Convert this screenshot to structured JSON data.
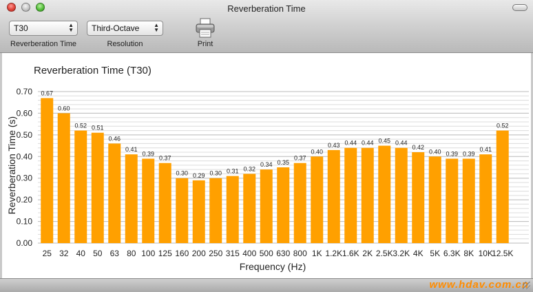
{
  "window": {
    "title": "Reverberation Time"
  },
  "toolbar": {
    "metric_select": {
      "value": "T30",
      "label": "Reverberation Time"
    },
    "resolution_select": {
      "value": "Third-Octave",
      "label": "Resolution"
    },
    "print_label": "Print"
  },
  "watermark": "www.hdav.com.cn",
  "chart_data": {
    "type": "bar",
    "title": "Reverberation Time (T30)",
    "xlabel": "Frequency (Hz)",
    "ylabel": "Reverberation Time (s)",
    "ylim": [
      0,
      0.7
    ],
    "yticks": [
      "0.00",
      "0.10",
      "0.20",
      "0.30",
      "0.40",
      "0.50",
      "0.60",
      "0.70"
    ],
    "grid": true,
    "bar_color": "#ffa000",
    "categories": [
      "25",
      "32",
      "40",
      "50",
      "63",
      "80",
      "100",
      "125",
      "160",
      "200",
      "250",
      "315",
      "400",
      "500",
      "630",
      "800",
      "1K",
      "1.2K",
      "1.6K",
      "2K",
      "2.5K",
      "3.2K",
      "4K",
      "5K",
      "6.3K",
      "8K",
      "10K",
      "12.5K"
    ],
    "values": [
      0.67,
      0.6,
      0.52,
      0.51,
      0.46,
      0.41,
      0.39,
      0.37,
      0.3,
      0.29,
      0.3,
      0.31,
      0.32,
      0.34,
      0.35,
      0.37,
      0.4,
      0.43,
      0.44,
      0.44,
      0.45,
      0.44,
      0.42,
      0.4,
      0.39,
      0.39,
      0.41,
      0.52
    ],
    "value_labels": [
      "0.67",
      "0.60",
      "0.52",
      "0.51",
      "0.46",
      "0.41",
      "0.39",
      "0.37",
      "0.30",
      "0.29",
      "0.30",
      "0.31",
      "0.32",
      "0.34",
      "0.35",
      "0.37",
      "0.40",
      "0.43",
      "0.44",
      "0.44",
      "0.45",
      "0.44",
      "0.42",
      "0.40",
      "0.39",
      "0.39",
      "0.41",
      "0.52"
    ]
  }
}
